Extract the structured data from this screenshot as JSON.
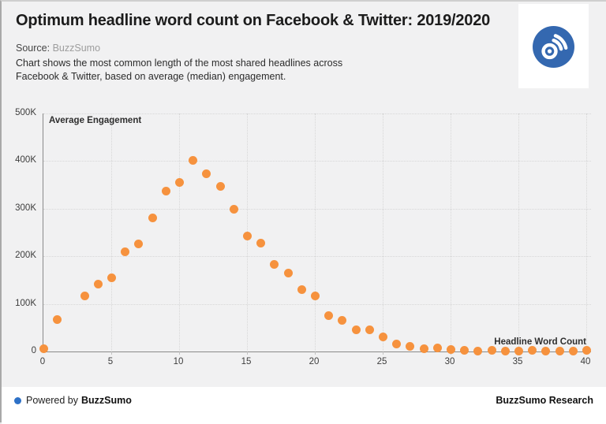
{
  "header": {
    "title": "Optimum headline word count on Facebook & Twitter: 2019/2020",
    "source_label": "Source:",
    "source_value": "BuzzSumo",
    "subtitle_line1": "Chart shows the most common length of the most shared headlines across",
    "subtitle_line2": "Facebook & Twitter, based on average (median) engagement.",
    "logo_icon": "buzzsumo-signal-icon",
    "logo_blue": "#3468b0"
  },
  "chart_data": {
    "type": "scatter",
    "title": "",
    "ylabel": "Average Engagement",
    "xlabel": "Headline Word Count",
    "xlim": [
      0,
      40
    ],
    "ylim": [
      0,
      500000
    ],
    "grid": "dotted",
    "legend": "none",
    "point_color": "#f6923e",
    "x": [
      0,
      1,
      3,
      4,
      5,
      6,
      7,
      8,
      9,
      10,
      11,
      12,
      13,
      14,
      15,
      16,
      17,
      18,
      19,
      20,
      21,
      22,
      23,
      24,
      25,
      26,
      27,
      28,
      29,
      30,
      31,
      32,
      33,
      34,
      35,
      36,
      37,
      38,
      39,
      40
    ],
    "values": [
      7000,
      68000,
      118000,
      142000,
      155000,
      211000,
      226000,
      282000,
      337000,
      356000,
      402000,
      374000,
      348000,
      300000,
      243000,
      228000,
      183000,
      166000,
      131000,
      118000,
      76000,
      66000,
      47000,
      46000,
      32000,
      17000,
      11000,
      7000,
      8000,
      5000,
      3000,
      2000,
      2500,
      2000,
      2000,
      2500,
      2000,
      2000,
      2000,
      2500
    ],
    "x_ticks": [
      {
        "label": "0",
        "value": 0
      },
      {
        "label": "5",
        "value": 5
      },
      {
        "label": "10",
        "value": 10
      },
      {
        "label": "15",
        "value": 15
      },
      {
        "label": "20",
        "value": 20
      },
      {
        "label": "25",
        "value": 25
      },
      {
        "label": "30",
        "value": 30
      },
      {
        "label": "35",
        "value": 35
      },
      {
        "label": "40",
        "value": 40
      }
    ],
    "y_ticks": [
      {
        "label": "0",
        "value": 0
      },
      {
        "label": "100K",
        "value": 100000
      },
      {
        "label": "200K",
        "value": 200000
      },
      {
        "label": "300K",
        "value": 300000
      },
      {
        "label": "400K",
        "value": 400000
      },
      {
        "label": "500K",
        "value": 500000
      }
    ]
  },
  "footer": {
    "powered_by_prefix": "Powered by",
    "powered_by_brand": "BuzzSumo",
    "research_label": "BuzzSumo Research",
    "bullet_color": "#2e71c7"
  },
  "colors": {
    "background": "#f1f1f2",
    "panel_white": "#ffffff",
    "grid": "#d7d7d7",
    "axis": "#8a8a8a",
    "point_orange": "#f6923e"
  }
}
